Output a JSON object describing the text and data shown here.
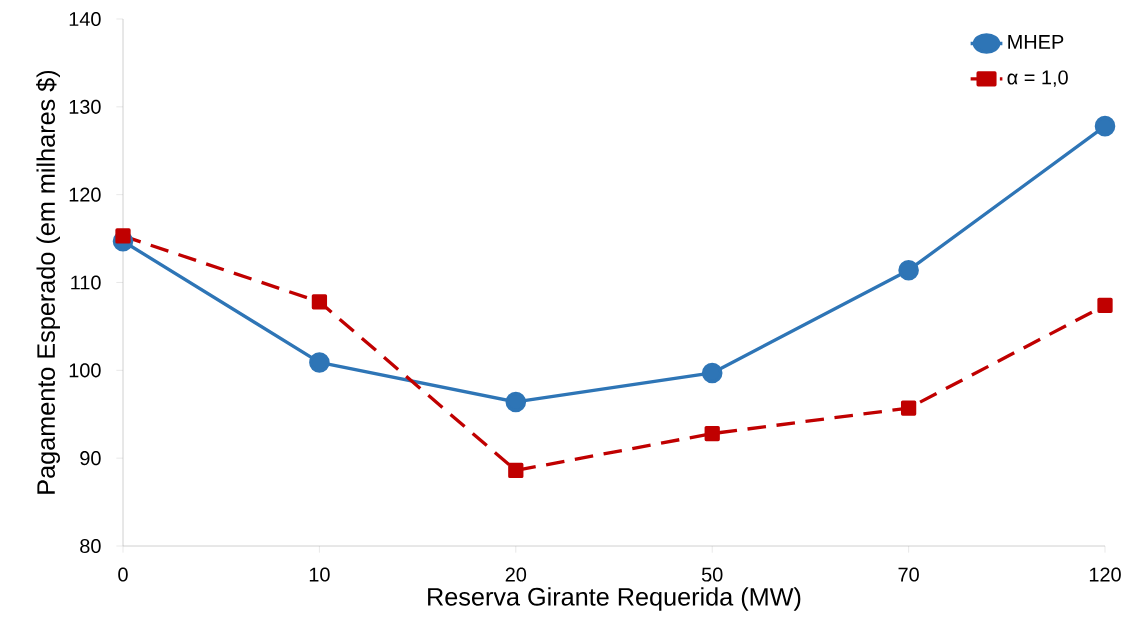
{
  "chart_data": {
    "type": "line",
    "xlabel": "Reserva Girante Requerida (MW)",
    "ylabel": "Pagamento Esperado (em milhares $)",
    "categories": [
      "0",
      "10",
      "20",
      "50",
      "70",
      "120"
    ],
    "series": [
      {
        "name": "MHEP",
        "color": "#2e75b6",
        "marker": "circle",
        "line_style": "solid",
        "values": [
          114.7,
          100.9,
          96.4,
          99.7,
          111.4,
          127.8
        ]
      },
      {
        "name": "α = 1,0",
        "color": "#c00000",
        "marker": "square",
        "line_style": "dashed",
        "values": [
          115.3,
          107.8,
          88.6,
          92.8,
          95.7,
          107.4
        ]
      }
    ],
    "ylim": [
      80,
      140
    ],
    "yticks": [
      80,
      90,
      100,
      110,
      120,
      130,
      140
    ],
    "grid": false,
    "legend": "top right"
  }
}
